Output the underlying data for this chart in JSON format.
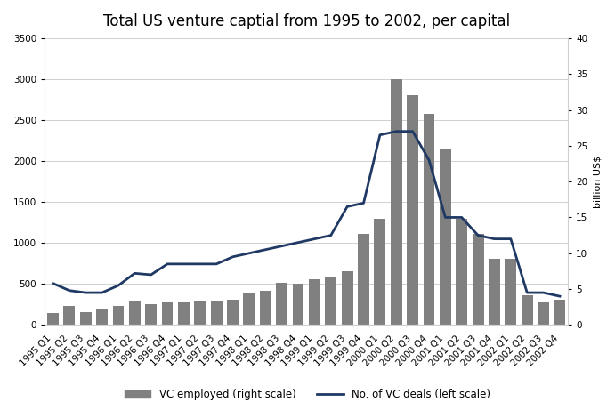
{
  "title": "Total US venture captial from 1995 to 2002, per capital",
  "categories": [
    "1995 Q1",
    "1995 Q2",
    "1995 Q3",
    "1995 Q4",
    "1996 Q1",
    "1996 Q2",
    "1996 Q3",
    "1996 Q4",
    "1997 Q1",
    "1997 Q2",
    "1997 Q3",
    "1997 Q4",
    "1998 Q1",
    "1998 Q2",
    "1998 Q3",
    "1998 Q4",
    "1999 Q1",
    "1999 Q2",
    "1999 Q3",
    "1999 Q4",
    "2000 Q1",
    "2000 Q2",
    "2000 Q3",
    "2000 Q4",
    "2001 Q1",
    "2001 Q2",
    "2001 Q3",
    "2001 Q4",
    "2002 Q1",
    "2002 Q2",
    "2002 Q3",
    "2002 Q4"
  ],
  "bar_values": [
    150,
    230,
    160,
    200,
    230,
    290,
    250,
    280,
    280,
    290,
    300,
    305,
    390,
    415,
    510,
    505,
    560,
    590,
    650,
    1110,
    1300,
    3000,
    2800,
    2580,
    2150,
    1300,
    1110,
    810,
    810,
    360,
    280,
    305
  ],
  "line_values": [
    5.8,
    4.8,
    4.5,
    4.5,
    5.5,
    7.2,
    7.0,
    8.5,
    8.5,
    8.5,
    8.5,
    9.5,
    10.0,
    10.5,
    11.0,
    11.5,
    12.0,
    12.5,
    16.5,
    17.0,
    26.5,
    27.0,
    27.0,
    23.0,
    15.0,
    15.0,
    12.5,
    12.0,
    12.0,
    4.5,
    4.5,
    4.0
  ],
  "bar_color": "#808080",
  "line_color": "#1f3864",
  "ylabel_right": "billion US$",
  "ylim_left": [
    0,
    3500
  ],
  "ylim_right": [
    0,
    40
  ],
  "yticks_left": [
    0,
    500,
    1000,
    1500,
    2000,
    2500,
    3000,
    3500
  ],
  "yticks_right": [
    0,
    5,
    10,
    15,
    20,
    25,
    30,
    35,
    40
  ],
  "legend_bar": "VC employed (right scale)",
  "legend_line": "No. of VC deals (left scale)",
  "background_color": "#ffffff",
  "grid_color": "#d0d0d0",
  "title_fontsize": 12,
  "axis_fontsize": 8,
  "tick_fontsize": 7.5,
  "legend_fontsize": 8.5
}
